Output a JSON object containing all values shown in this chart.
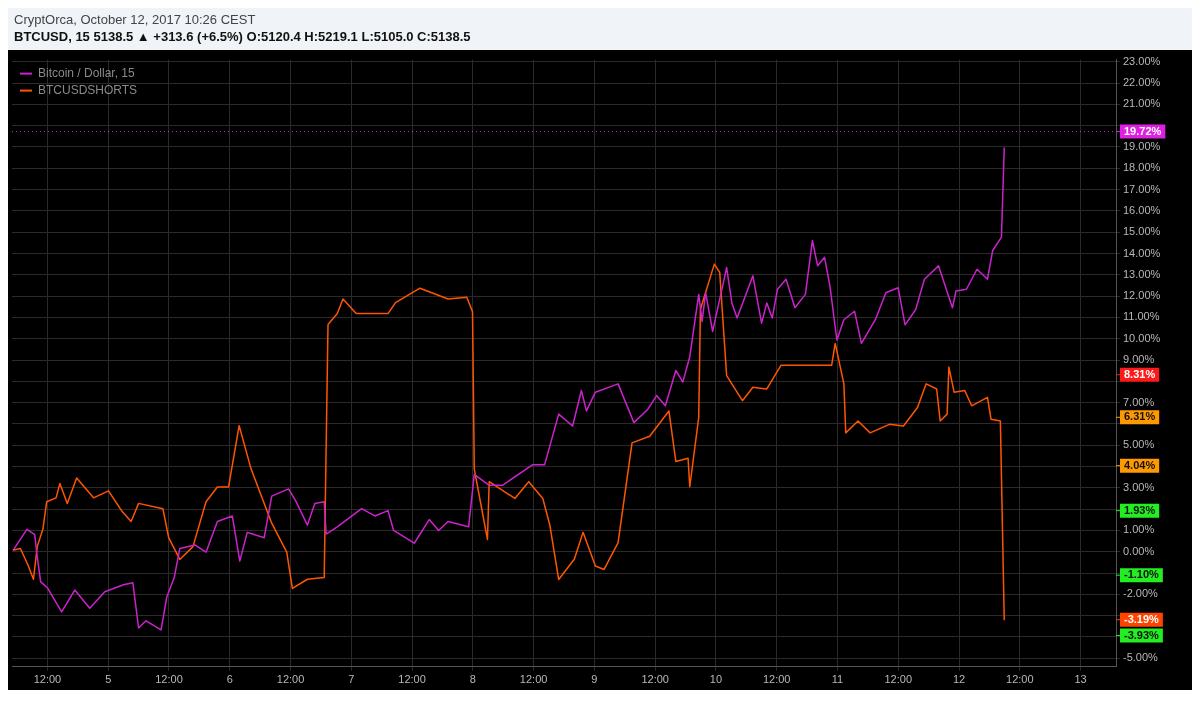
{
  "chart_data": {
    "type": "line",
    "subtitle": "CryptOrca, October 12, 2017 10:26 CEST",
    "title": "BTCUSD, 15 5138.5 ▲ +313.6 (+6.5%) O:5120.4 H:5219.1 L:5105.0 C:5138.5",
    "xlim": [
      "2017-10-04T05:00",
      "2017-10-13T07:00"
    ],
    "xticks": [
      {
        "value": "2017-10-04T12:00",
        "label": "12:00"
      },
      {
        "value": "2017-10-05",
        "label": "5"
      },
      {
        "value": "2017-10-05T12:00",
        "label": "12:00"
      },
      {
        "value": "2017-10-06",
        "label": "6"
      },
      {
        "value": "2017-10-06T12:00",
        "label": "12:00"
      },
      {
        "value": "2017-10-07",
        "label": "7"
      },
      {
        "value": "2017-10-07T12:00",
        "label": "12:00"
      },
      {
        "value": "2017-10-08",
        "label": "8"
      },
      {
        "value": "2017-10-08T12:00",
        "label": "12:00"
      },
      {
        "value": "2017-10-09",
        "label": "9"
      },
      {
        "value": "2017-10-09T12:00",
        "label": "12:00"
      },
      {
        "value": "2017-10-10",
        "label": "10"
      },
      {
        "value": "2017-10-10T12:00",
        "label": "12:00"
      },
      {
        "value": "2017-10-11",
        "label": "11"
      },
      {
        "value": "2017-10-11T12:00",
        "label": "12:00"
      },
      {
        "value": "2017-10-12",
        "label": "12"
      },
      {
        "value": "2017-10-12T12:00",
        "label": "12:00"
      },
      {
        "value": "2017-10-13",
        "label": "13"
      }
    ],
    "ylim": [
      -5.4,
      23.1
    ],
    "yticks": [
      {
        "value": -5,
        "label": "-5.00%"
      },
      {
        "value": -4,
        "label": null
      },
      {
        "value": -3,
        "label": null
      },
      {
        "value": -2,
        "label": "-2.00%"
      },
      {
        "value": -1,
        "label": null
      },
      {
        "value": 0,
        "label": "0.00%"
      },
      {
        "value": 1,
        "label": "1.00%"
      },
      {
        "value": 2,
        "label": null
      },
      {
        "value": 3,
        "label": "3.00%"
      },
      {
        "value": 4,
        "label": null
      },
      {
        "value": 5,
        "label": "5.00%"
      },
      {
        "value": 6,
        "label": null
      },
      {
        "value": 7,
        "label": "7.00%"
      },
      {
        "value": 8,
        "label": null
      },
      {
        "value": 9,
        "label": "9.00%"
      },
      {
        "value": 10,
        "label": "10.00%"
      },
      {
        "value": 11,
        "label": "11.00%"
      },
      {
        "value": 12,
        "label": "12.00%"
      },
      {
        "value": 13,
        "label": "13.00%"
      },
      {
        "value": 14,
        "label": "14.00%"
      },
      {
        "value": 15,
        "label": "15.00%"
      },
      {
        "value": 16,
        "label": "16.00%"
      },
      {
        "value": 17,
        "label": "17.00%"
      },
      {
        "value": 18,
        "label": "18.00%"
      },
      {
        "value": 19,
        "label": "19.00%"
      },
      {
        "value": 20,
        "label": null
      },
      {
        "value": 21,
        "label": "21.00%"
      },
      {
        "value": 22,
        "label": "22.00%"
      },
      {
        "value": 23,
        "label": "23.00%"
      }
    ],
    "grid": true,
    "legend": "top left",
    "marker": "none",
    "line_style": "solid",
    "ref_lines": [
      {
        "axis": "y",
        "value": 19.72,
        "label": "19.72%",
        "color": "#e020e0",
        "line_style": "dotted"
      }
    ],
    "annotations": [
      "8.31%",
      "6.31%",
      "4.04%",
      "1.93%",
      "-1.10%",
      "-3.19%",
      "-3.93%"
    ],
    "series": [
      {
        "name": "Bitcoin / Dollar, 15",
        "color": "#cc22cc",
        "x": [
          "2017-10-04T05:14",
          "2017-10-04T07:57",
          "2017-10-04T09:29",
          "2017-10-04T09:52",
          "2017-10-04T10:39",
          "2017-10-04T12:00",
          "2017-10-04T14:48",
          "2017-10-04T17:24",
          "2017-10-04T20:21",
          "2017-10-04T23:20",
          "2017-10-05T03:01",
          "2017-10-05T04:52",
          "2017-10-05T06:00",
          "2017-10-05T07:28",
          "2017-10-05T10:26",
          "2017-10-05T11:33",
          "2017-10-05T13:02",
          "2017-10-05T14:08",
          "2017-10-05T17:07",
          "2017-10-05T19:19",
          "2017-10-05T21:33",
          "2017-10-06T00:30",
          "2017-10-06T01:59",
          "2017-10-06T03:27",
          "2017-10-06T06:48",
          "2017-10-06T08:17",
          "2017-10-06T11:37",
          "2017-10-06T13:06",
          "2017-10-06T15:20",
          "2017-10-06T16:48",
          "2017-10-06T18:39",
          "2017-10-06T19:02",
          "2017-10-06T21:14",
          "2017-10-07T02:02",
          "2017-10-07T04:39",
          "2017-10-07T07:15",
          "2017-10-07T08:21",
          "2017-10-07T12:26",
          "2017-10-07T15:23",
          "2017-10-07T17:15",
          "2017-10-07T19:06",
          "2017-10-07T23:10",
          "2017-10-08T00:17",
          "2017-10-08T03:14",
          "2017-10-08T05:51",
          "2017-10-08T11:46",
          "2017-10-08T14:10",
          "2017-10-08T16:57",
          "2017-10-08T19:42",
          "2017-10-08T21:26",
          "2017-10-08T22:26",
          "2017-10-09T00:12",
          "2017-10-09T04:41",
          "2017-10-09T07:48",
          "2017-10-09T10:34",
          "2017-10-09T12:17",
          "2017-10-09T14:01",
          "2017-10-09T16:05",
          "2017-10-09T17:28",
          "2017-10-09T18:50",
          "2017-10-09T20:36",
          "2017-10-09T21:16",
          "2017-10-09T21:58",
          "2017-10-09T23:21",
          "2017-10-10T02:07",
          "2017-10-10T03:09",
          "2017-10-10T04:11",
          "2017-10-10T07:18",
          "2017-10-10T09:01",
          "2017-10-10T10:03",
          "2017-10-10T11:07",
          "2017-10-10T12:09",
          "2017-10-10T13:51",
          "2017-10-10T15:36",
          "2017-10-10T17:40",
          "2017-10-10T19:03",
          "2017-10-10T20:05",
          "2017-10-10T21:27",
          "2017-10-10T22:31",
          "2017-10-10T23:53",
          "2017-10-11T01:16",
          "2017-10-11T03:22",
          "2017-10-11T04:44",
          "2017-10-11T07:29",
          "2017-10-11T09:33",
          "2017-10-11T11:59",
          "2017-10-11T13:21",
          "2017-10-11T15:27",
          "2017-10-11T17:10",
          "2017-10-11T19:57",
          "2017-10-11T22:42",
          "2017-10-11T23:24",
          "2017-10-12T01:28",
          "2017-10-12T03:33",
          "2017-10-12T05:37",
          "2017-10-12T06:39",
          "2017-10-12T08:23",
          "2017-10-12T08:56"
        ],
        "values": [
          0.08,
          1.05,
          0.8,
          0,
          -1.4,
          -1.7,
          -2.82,
          -1.8,
          -2.65,
          -1.88,
          -1.55,
          -1.46,
          -3.58,
          -3.24,
          -3.67,
          -2.14,
          -1.21,
          0.15,
          0.32,
          -0.02,
          1.42,
          1.68,
          -0.44,
          0.91,
          0.66,
          2.61,
          2.95,
          2.35,
          1.25,
          2.27,
          2.35,
          0.83,
          1.17,
          2.02,
          1.68,
          1.93,
          1.0,
          0.4,
          1.51,
          1.0,
          1.42,
          1.17,
          3.63,
          3.12,
          3.12,
          4.08,
          4.08,
          6.46,
          5.9,
          7.57,
          6.61,
          7.49,
          7.88,
          6.06,
          6.69,
          7.33,
          6.85,
          8.51,
          7.96,
          9.15,
          12.08,
          10.81,
          12.16,
          10.34,
          13.34,
          11.68,
          10.97,
          12.95,
          10.73,
          11.68,
          10.97,
          12.32,
          12.79,
          11.45,
          12.08,
          14.61,
          13.42,
          13.82,
          12.47,
          9.94,
          10.89,
          11.29,
          9.78,
          10.89,
          12.16,
          12.39,
          10.65,
          11.37,
          12.79,
          13.42,
          11.45,
          12.24,
          12.32,
          13.26,
          12.79,
          14.14,
          14.77,
          18.97
        ]
      },
      {
        "name": "BTCUSDSHORTS",
        "color": "#ff5500",
        "x": [
          "2017-10-04T05:10",
          "2017-10-04T06:39",
          "2017-10-04T08:08",
          "2017-10-04T09:14",
          "2017-10-04T09:59",
          "2017-10-04T11:07",
          "2017-10-04T11:51",
          "2017-10-04T13:42",
          "2017-10-04T14:27",
          "2017-10-04T15:55",
          "2017-10-04T17:46",
          "2017-10-04T21:06",
          "2017-10-05T00:03",
          "2017-10-05T02:38",
          "2017-10-05T04:31",
          "2017-10-05T06:00",
          "2017-10-05T10:48",
          "2017-10-05T11:56",
          "2017-10-05T14:08",
          "2017-10-05T16:44",
          "2017-10-05T19:19",
          "2017-10-05T21:33",
          "2017-10-05T23:46",
          "2017-10-06T01:51",
          "2017-10-06T04:13",
          "2017-10-06T08:17",
          "2017-10-06T11:15",
          "2017-10-06T12:22",
          "2017-10-06T15:20",
          "2017-10-06T18:39",
          "2017-10-06T19:24",
          "2017-10-06T21:14",
          "2017-10-06T22:21",
          "2017-10-07T00:58",
          "2017-10-07T07:15",
          "2017-10-07T08:44",
          "2017-10-07T13:34",
          "2017-10-07T19:06",
          "2017-10-07T22:48",
          "2017-10-07T23:56",
          "2017-10-08T00:17",
          "2017-10-08T02:53",
          "2017-10-08T03:14",
          "2017-10-08T08:18",
          "2017-10-08T11:02",
          "2017-10-08T13:49",
          "2017-10-08T15:13",
          "2017-10-08T16:57",
          "2017-10-08T20:02",
          "2017-10-08T21:46",
          "2017-10-09T00:12",
          "2017-10-09T01:55",
          "2017-10-09T04:41",
          "2017-10-09T07:26",
          "2017-10-09T10:55",
          "2017-10-09T14:43",
          "2017-10-09T16:05",
          "2017-10-09T18:30",
          "2017-10-09T18:50",
          "2017-10-09T20:36",
          "2017-10-09T20:56",
          "2017-10-09T23:41",
          "2017-10-10T00:45",
          "2017-10-10T02:07",
          "2017-10-10T05:14",
          "2017-10-10T07:18",
          "2017-10-10T10:03",
          "2017-10-10T12:50",
          "2017-10-10T22:51",
          "2017-10-10T23:33",
          "2017-10-11T01:16",
          "2017-10-11T01:38",
          "2017-10-11T04:03",
          "2017-10-11T06:27",
          "2017-10-11T10:15",
          "2017-10-11T13:02",
          "2017-10-11T15:48",
          "2017-10-11T17:31",
          "2017-10-11T19:35",
          "2017-10-11T20:17",
          "2017-10-11T21:39",
          "2017-10-11T22:00",
          "2017-10-11T23:02",
          "2017-10-12T01:08",
          "2017-10-12T02:30",
          "2017-10-12T05:37",
          "2017-10-12T06:19",
          "2017-10-12T08:10",
          "2017-10-12T08:56"
        ],
        "values": [
          0.07,
          0.15,
          -0.61,
          -1.29,
          0.24,
          1.08,
          2.35,
          2.53,
          3.2,
          2.27,
          3.46,
          2.53,
          2.86,
          1.93,
          1.42,
          2.27,
          2.02,
          0.66,
          -0.36,
          0.24,
          2.35,
          3.04,
          3.04,
          5.92,
          3.88,
          1.34,
          -0.02,
          -1.72,
          -1.29,
          -1.21,
          10.67,
          11.18,
          11.86,
          11.18,
          11.18,
          11.69,
          12.37,
          11.86,
          11.95,
          11.27,
          3.88,
          0.58,
          3.29,
          2.5,
          3.29,
          2.5,
          1.23,
          -1.3,
          -0.35,
          0.91,
          -0.67,
          -0.83,
          0.43,
          5.11,
          5.42,
          6.61,
          4.24,
          4.39,
          3.05,
          6.3,
          11.37,
          13.5,
          13.11,
          8.27,
          7.09,
          7.72,
          7.64,
          8.75,
          8.75,
          9.78,
          7.88,
          5.58,
          6.14,
          5.58,
          5.98,
          5.9,
          6.77,
          7.88,
          7.64,
          6.14,
          6.46,
          8.67,
          7.49,
          7.57,
          6.85,
          7.25,
          6.22,
          6.14,
          -3.21
        ]
      }
    ]
  }
}
